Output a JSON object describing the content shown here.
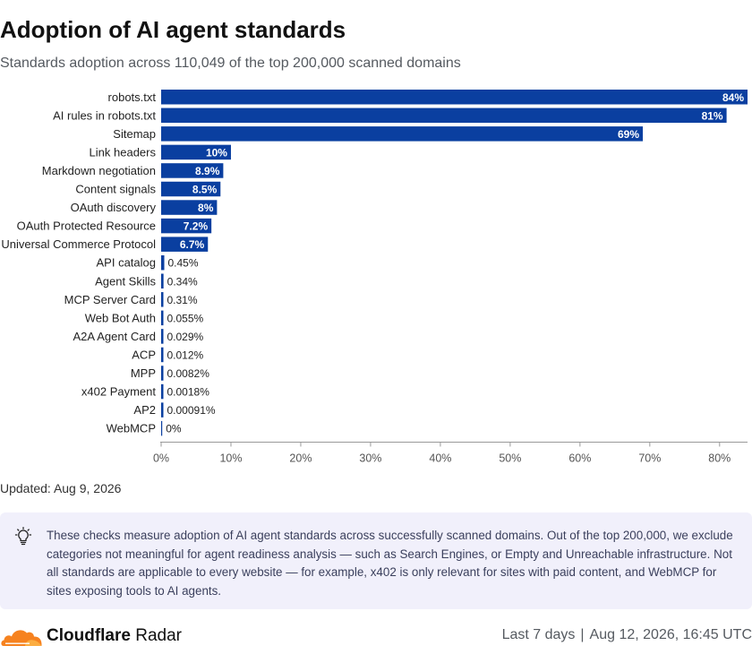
{
  "header": {
    "title": "Adoption of AI agent standards",
    "subtitle": "Standards adoption across 110,049 of the top 200,000 scanned domains"
  },
  "chart_data": {
    "type": "bar",
    "orientation": "horizontal",
    "categories": [
      "robots.txt",
      "AI rules in robots.txt",
      "Sitemap",
      "Link headers",
      "Markdown negotiation",
      "Content signals",
      "OAuth discovery",
      "OAuth Protected Resource",
      "Universal Commerce Protocol",
      "API catalog",
      "Agent Skills",
      "MCP Server Card",
      "Web Bot Auth",
      "A2A Agent Card",
      "ACP",
      "MPP",
      "x402 Payment",
      "AP2",
      "WebMCP"
    ],
    "values": [
      84,
      81,
      69,
      10,
      8.9,
      8.5,
      8,
      7.2,
      6.7,
      0.45,
      0.34,
      0.31,
      0.055,
      0.029,
      0.012,
      0.0082,
      0.0018,
      0.00091,
      0
    ],
    "value_labels": [
      "84%",
      "81%",
      "69%",
      "10%",
      "8.9%",
      "8.5%",
      "8%",
      "7.2%",
      "6.7%",
      "0.45%",
      "0.34%",
      "0.31%",
      "0.055%",
      "0.029%",
      "0.012%",
      "0.0082%",
      "0.0018%",
      "0.00091%",
      "0%"
    ],
    "x_ticks": [
      "0%",
      "10%",
      "20%",
      "30%",
      "40%",
      "50%",
      "60%",
      "70%",
      "80%"
    ],
    "xlim": [
      0,
      84
    ],
    "grid": false,
    "colors": {
      "bar": "#0a3fa0",
      "label_inside": "#ffffff",
      "label_outside": "#222222",
      "axis": "#999999"
    }
  },
  "updated": "Updated: Aug 9, 2026",
  "note": {
    "icon": "lightbulb-icon",
    "text": "These checks measure adoption of AI agent standards across successfully scanned domains. Out of the top 200,000, we exclude categories not meaningful for agent readiness analysis — such as Search Engines, or Empty and Unreachable infrastructure. Not all standards are applicable to every website — for example, x402 is only relevant for sites with paid content, and WebMCP for sites exposing tools to AI agents."
  },
  "footer": {
    "logo": "cloudflare-cloud-icon",
    "brand_bold": "Cloudflare",
    "brand_rest": "Radar",
    "range": "Last 7 days",
    "separator": "|",
    "timestamp": "Aug 12, 2026, 16:45 UTC"
  }
}
